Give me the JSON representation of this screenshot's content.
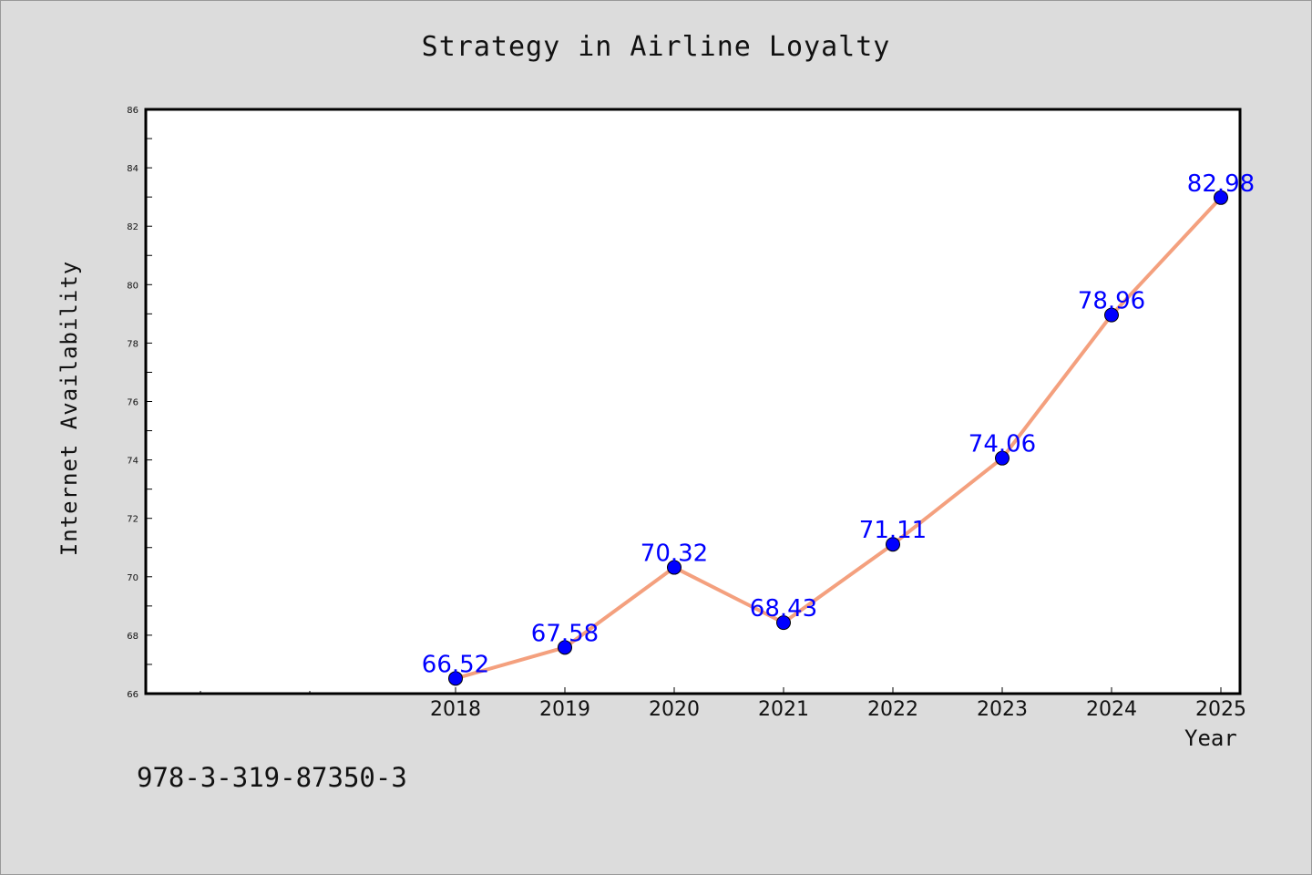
{
  "chart_data": {
    "type": "line",
    "title": "Strategy in Airline Loyalty",
    "xlabel": "Year",
    "ylabel": "Internet Availability",
    "x": [
      "2018",
      "2019",
      "2020",
      "2021",
      "2022",
      "2023",
      "2024",
      "2025"
    ],
    "series": [
      {
        "values": [
          66.52,
          67.58,
          70.32,
          68.43,
          71.11,
          74.06,
          78.96,
          82.98
        ]
      }
    ],
    "data_labels": [
      "66.52",
      "67.58",
      "70.32",
      "68.43",
      "71.11",
      "74.06",
      "78.96",
      "82.98"
    ],
    "ylim": [
      66,
      86
    ],
    "yticks": [
      "66",
      "68",
      "70",
      "72",
      "74",
      "76",
      "78",
      "80",
      "82",
      "84",
      "86"
    ],
    "grid": false,
    "line_color": "#f4a07e",
    "marker_color": "#0000ff",
    "label_color": "#0000ff"
  },
  "footer": {
    "code": "978-3-319-87350-3"
  }
}
